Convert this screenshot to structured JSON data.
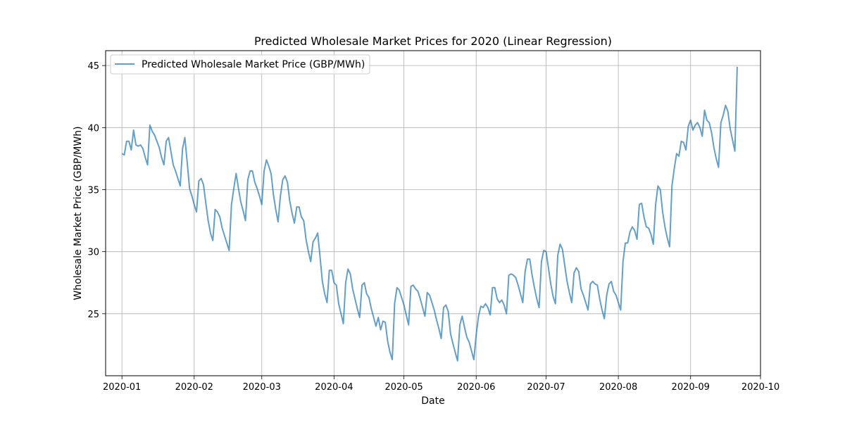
{
  "chart_data": {
    "type": "line",
    "title": "Predicted Wholesale Market Prices for 2020 (Linear Regression)",
    "xlabel": "Date",
    "ylabel": "Wholesale Market Price (GBP/MWh)",
    "xlim": [
      "2019-12-25",
      "2020-10-01"
    ],
    "ylim": [
      20.0,
      46.2
    ],
    "x_ticks": [
      "2020-01",
      "2020-02",
      "2020-03",
      "2020-04",
      "2020-05",
      "2020-06",
      "2020-07",
      "2020-08",
      "2020-09",
      "2020-10"
    ],
    "x_tick_dates": [
      "2020-01-01",
      "2020-02-01",
      "2020-03-01",
      "2020-04-01",
      "2020-05-01",
      "2020-06-01",
      "2020-07-01",
      "2020-08-01",
      "2020-09-01",
      "2020-10-01"
    ],
    "y_ticks": [
      25,
      30,
      35,
      40,
      45
    ],
    "grid": true,
    "legend_position": "top-left",
    "series": [
      {
        "name": "Predicted Wholesale Market Price (GBP/MWh)",
        "color": "#1f77b4",
        "x_start": "2020-01-01",
        "x_step": "1 day",
        "values": [
          37.9,
          37.8,
          38.9,
          38.9,
          38.2,
          39.8,
          38.6,
          38.5,
          38.6,
          38.3,
          37.6,
          37.0,
          40.2,
          39.7,
          39.4,
          38.9,
          38.4,
          37.6,
          37.0,
          38.9,
          39.2,
          38.1,
          37.0,
          36.5,
          35.9,
          35.3,
          38.3,
          39.2,
          37.2,
          35.1,
          34.5,
          33.8,
          33.2,
          35.7,
          35.9,
          35.4,
          33.9,
          32.5,
          31.5,
          30.9,
          33.4,
          33.2,
          32.8,
          31.9,
          31.3,
          30.7,
          30.1,
          33.8,
          35.1,
          36.3,
          35.1,
          34.0,
          33.3,
          32.5,
          35.8,
          36.5,
          36.5,
          35.6,
          35.1,
          34.5,
          33.8,
          36.5,
          37.4,
          36.9,
          36.3,
          34.6,
          33.4,
          32.4,
          34.5,
          35.8,
          36.1,
          35.6,
          34.1,
          33.1,
          32.3,
          33.6,
          33.6,
          32.8,
          32.5,
          31.0,
          30.0,
          29.2,
          30.8,
          31.1,
          31.5,
          29.6,
          27.6,
          26.6,
          25.9,
          28.5,
          28.5,
          27.5,
          27.3,
          25.8,
          25.0,
          24.2,
          27.5,
          28.6,
          28.2,
          27.0,
          26.2,
          25.4,
          24.7,
          27.3,
          27.5,
          26.6,
          26.3,
          25.4,
          24.7,
          24.0,
          24.7,
          23.7,
          24.4,
          24.3,
          22.8,
          21.9,
          21.3,
          25.8,
          27.1,
          26.9,
          26.3,
          25.7,
          24.9,
          24.1,
          27.2,
          27.3,
          27.0,
          26.8,
          26.2,
          25.5,
          24.8,
          26.7,
          26.5,
          25.9,
          25.3,
          24.5,
          23.8,
          23.0,
          25.5,
          25.7,
          25.2,
          23.4,
          22.6,
          21.9,
          21.2,
          24.1,
          24.8,
          23.9,
          23.1,
          22.7,
          22.0,
          21.3,
          23.3,
          24.8,
          25.6,
          25.5,
          25.8,
          25.5,
          24.9,
          27.1,
          27.1,
          26.2,
          25.9,
          26.1,
          25.7,
          25.0,
          28.1,
          28.2,
          28.1,
          27.9,
          27.3,
          26.6,
          25.9,
          28.4,
          29.4,
          29.4,
          28.1,
          27.1,
          26.2,
          25.5,
          29.2,
          30.1,
          30.0,
          28.7,
          27.4,
          26.4,
          25.8,
          29.7,
          30.6,
          30.2,
          28.9,
          27.6,
          26.7,
          25.9,
          28.3,
          28.7,
          28.4,
          27.0,
          26.5,
          25.9,
          25.3,
          27.4,
          27.6,
          27.4,
          27.3,
          26.2,
          25.3,
          24.6,
          26.5,
          27.4,
          27.6,
          26.8,
          26.5,
          25.9,
          25.3,
          29.2,
          30.7,
          30.7,
          31.6,
          32.0,
          31.7,
          31.0,
          33.8,
          33.9,
          32.8,
          32.0,
          31.9,
          31.4,
          30.6,
          33.8,
          35.3,
          35.0,
          33.2,
          32.0,
          31.1,
          30.4,
          35.3,
          36.7,
          37.9,
          37.7,
          38.9,
          38.8,
          38.2,
          40.1,
          40.6,
          39.8,
          40.2,
          40.4,
          40.0,
          39.3,
          41.4,
          40.6,
          40.4,
          39.6,
          38.4,
          37.5,
          36.8,
          40.4,
          41.0,
          41.8,
          41.3,
          39.9,
          39.0,
          38.1,
          44.9
        ]
      }
    ]
  }
}
